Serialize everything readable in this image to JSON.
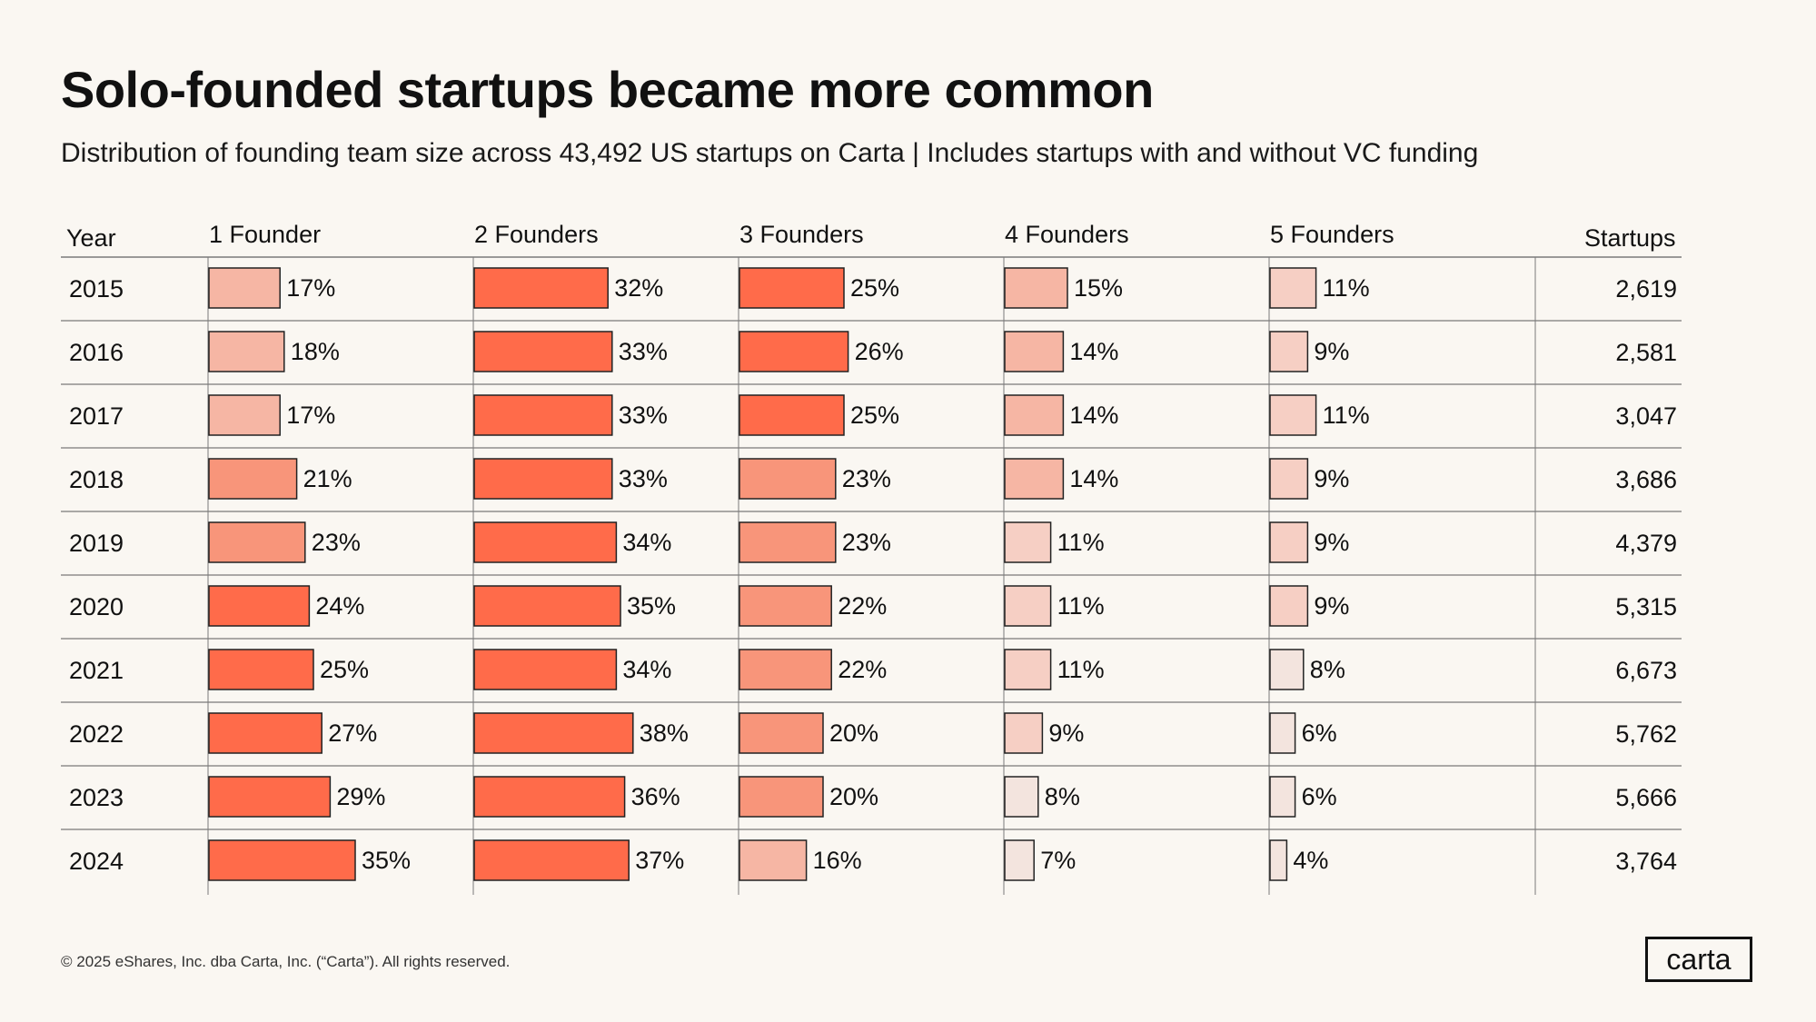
{
  "header": {
    "title": "Solo-founded startups became more common",
    "subtitle": "Distribution of founding team size across 43,492 US startups on Carta | Includes startups with and without VC funding"
  },
  "chart_data": {
    "type": "table",
    "title": "Solo-founded startups became more common",
    "columns": [
      "Year",
      "1 Founder",
      "2 Founders",
      "3 Founders",
      "4 Founders",
      "5 Founders",
      "Startups"
    ],
    "series_names": [
      "1 Founder",
      "2 Founders",
      "3 Founders",
      "4 Founders",
      "5 Founders"
    ],
    "rows": [
      {
        "year": "2015",
        "values": [
          17,
          32,
          25,
          15,
          11
        ],
        "startups": "2,619"
      },
      {
        "year": "2016",
        "values": [
          18,
          33,
          26,
          14,
          9
        ],
        "startups": "2,581"
      },
      {
        "year": "2017",
        "values": [
          17,
          33,
          25,
          14,
          11
        ],
        "startups": "3,047"
      },
      {
        "year": "2018",
        "values": [
          21,
          33,
          23,
          14,
          9
        ],
        "startups": "3,686"
      },
      {
        "year": "2019",
        "values": [
          23,
          34,
          23,
          11,
          9
        ],
        "startups": "4,379"
      },
      {
        "year": "2020",
        "values": [
          24,
          35,
          22,
          11,
          9
        ],
        "startups": "5,315"
      },
      {
        "year": "2021",
        "values": [
          25,
          34,
          22,
          11,
          8
        ],
        "startups": "6,673"
      },
      {
        "year": "2022",
        "values": [
          27,
          38,
          20,
          9,
          6
        ],
        "startups": "5,762"
      },
      {
        "year": "2023",
        "values": [
          29,
          36,
          20,
          8,
          6
        ],
        "startups": "5,666"
      },
      {
        "year": "2024",
        "values": [
          35,
          37,
          16,
          7,
          4
        ],
        "startups": "3,764"
      }
    ],
    "value_suffix": "%",
    "color_scale": [
      "#f3e4de",
      "#f6cfc4",
      "#f6b6a4",
      "#f8957a",
      "#ff6b4a"
    ]
  },
  "footer": {
    "copyright": "© 2025 eShares, Inc. dba Carta, Inc. (“Carta”). All rights reserved.",
    "logo_text": "carta"
  }
}
